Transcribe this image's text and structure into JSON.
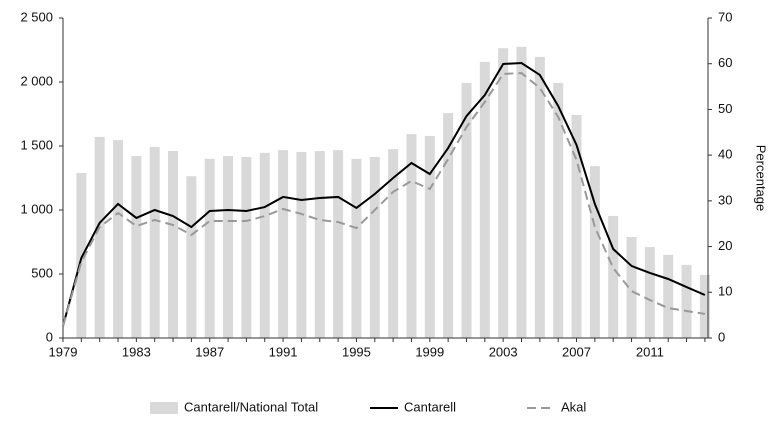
{
  "chart_data": {
    "type": "bar_line",
    "categories": [
      "1979",
      null,
      null,
      null,
      "1983",
      null,
      null,
      null,
      "1987",
      null,
      null,
      null,
      "1991",
      null,
      null,
      null,
      "1995",
      null,
      null,
      null,
      "1999",
      null,
      null,
      null,
      "2003",
      null,
      null,
      null,
      "2007",
      null,
      null,
      null,
      "2011",
      null,
      null,
      null
    ],
    "series": [
      {
        "name": "Cantarell/National Total",
        "type": "bar",
        "axis": "y2",
        "color": "#d9d9d9",
        "values": [
          null,
          36.1,
          44,
          43.3,
          39.8,
          41.8,
          40.9,
          35.4,
          39.2,
          39.8,
          39.6,
          40.5,
          41.1,
          40.7,
          40.9,
          41.1,
          39.2,
          39.6,
          41.3,
          44.6,
          44.2,
          49.2,
          55.8,
          60.4,
          63.4,
          63.7,
          61.5,
          55.8,
          48.8,
          37.6,
          26.7,
          22.1,
          19.9,
          18.2,
          16,
          13.8
        ]
      },
      {
        "name": "Cantarell",
        "type": "line",
        "color": "#000000",
        "dash": "solid",
        "values": [
          94,
          625,
          900,
          1047,
          938,
          1000,
          953,
          867,
          992,
          1000,
          992,
          1023,
          1102,
          1078,
          1094,
          1102,
          1016,
          1125,
          1250,
          1367,
          1281,
          1484,
          1734,
          1898,
          2141,
          2148,
          2055,
          1813,
          1508,
          1047,
          695,
          563,
          508,
          461,
          398,
          336
        ]
      },
      {
        "name": "Akal",
        "type": "line",
        "color": "#999999",
        "dash": "dashed",
        "values": [
          94,
          594,
          867,
          977,
          875,
          922,
          883,
          805,
          914,
          914,
          914,
          953,
          1008,
          969,
          922,
          906,
          859,
          1000,
          1141,
          1227,
          1164,
          1398,
          1648,
          1844,
          2063,
          2070,
          1953,
          1727,
          1391,
          867,
          547,
          367,
          297,
          234,
          211,
          188
        ]
      }
    ],
    "ylim": [
      0,
      2500
    ],
    "yticks": [
      0,
      500,
      {
        "value": 1000,
        "label": "1 000"
      },
      {
        "value": 1500,
        "label": "1 500"
      },
      {
        "value": 2000,
        "label": "2 000"
      },
      {
        "value": 2500,
        "label": "2 500"
      }
    ],
    "y2label": "Percentage",
    "y2lim": [
      0,
      70
    ],
    "y2ticks": [
      0,
      10,
      20,
      30,
      40,
      50,
      60,
      70
    ],
    "legend": "bottom",
    "grid": false
  }
}
